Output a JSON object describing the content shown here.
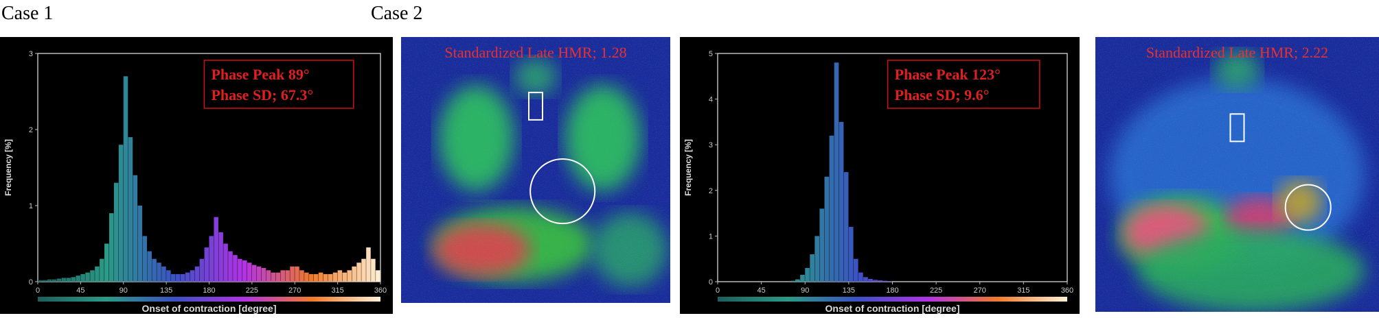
{
  "case_labels": [
    "Case 1",
    "Case 2"
  ],
  "chart_data": [
    {
      "type": "histogram",
      "xlabel": "Onset of contraction [degree]",
      "ylabel": "Frequency [%]",
      "annotations": [
        "Phase Peak 89°",
        "Phase SD; 67.3°"
      ],
      "bins": [
        0,
        5,
        10,
        15,
        20,
        25,
        30,
        35,
        40,
        45,
        50,
        55,
        60,
        65,
        70,
        75,
        80,
        85,
        90,
        95,
        100,
        105,
        110,
        115,
        120,
        125,
        130,
        135,
        140,
        145,
        150,
        155,
        160,
        165,
        170,
        175,
        180,
        185,
        190,
        195,
        200,
        205,
        210,
        215,
        220,
        225,
        230,
        235,
        240,
        245,
        250,
        255,
        260,
        265,
        270,
        275,
        280,
        285,
        290,
        295,
        300,
        305,
        310,
        315,
        320,
        325,
        330,
        335,
        340,
        345,
        350,
        355,
        360
      ],
      "values": [
        0.02,
        0.02,
        0.03,
        0.03,
        0.04,
        0.05,
        0.05,
        0.06,
        0.08,
        0.1,
        0.12,
        0.15,
        0.2,
        0.3,
        0.5,
        0.9,
        1.3,
        1.8,
        2.7,
        1.9,
        1.4,
        1.0,
        0.6,
        0.4,
        0.3,
        0.25,
        0.2,
        0.15,
        0.1,
        0.1,
        0.1,
        0.12,
        0.15,
        0.2,
        0.3,
        0.45,
        0.6,
        0.85,
        0.65,
        0.5,
        0.4,
        0.35,
        0.3,
        0.28,
        0.25,
        0.22,
        0.2,
        0.18,
        0.15,
        0.12,
        0.12,
        0.15,
        0.15,
        0.2,
        0.2,
        0.15,
        0.12,
        0.1,
        0.1,
        0.12,
        0.1,
        0.1,
        0.12,
        0.15,
        0.12,
        0.15,
        0.2,
        0.25,
        0.3,
        0.45,
        0.3,
        0.15
      ],
      "xlim": [
        0,
        360
      ],
      "xticks": [
        0,
        45,
        90,
        135,
        180,
        225,
        270,
        315,
        360
      ],
      "ylim": [
        0,
        3
      ],
      "yticks": [
        0,
        1,
        2,
        3
      ],
      "colorscale": [
        "#1d5f5e",
        "#2b9a86",
        "#3a52c4",
        "#b232e6",
        "#f07a2a",
        "#fff1d6"
      ]
    },
    {
      "type": "histogram",
      "xlabel": "Onset of contraction [degree]",
      "ylabel": "Frequency [%]",
      "annotations": [
        "Phase Peak 123°",
        "Phase SD; 9.6°"
      ],
      "bins": [
        0,
        5,
        10,
        15,
        20,
        25,
        30,
        35,
        40,
        45,
        50,
        55,
        60,
        65,
        70,
        75,
        80,
        85,
        90,
        95,
        100,
        105,
        110,
        115,
        120,
        125,
        130,
        135,
        140,
        145,
        150,
        155,
        160,
        165,
        170,
        175,
        180,
        185,
        190,
        195,
        200,
        205,
        210,
        215,
        220,
        225,
        230,
        235,
        240,
        245,
        250,
        255,
        260,
        265,
        270,
        275,
        280,
        285,
        290,
        295,
        300,
        305,
        310,
        315,
        320,
        325,
        330,
        335,
        340,
        345,
        350,
        355,
        360
      ],
      "values": [
        0,
        0,
        0,
        0,
        0,
        0,
        0,
        0,
        0,
        0,
        0,
        0,
        0,
        0,
        0,
        0.02,
        0.05,
        0.15,
        0.3,
        0.6,
        1.0,
        1.6,
        2.3,
        3.2,
        4.8,
        3.5,
        2.4,
        1.2,
        0.5,
        0.2,
        0.1,
        0.06,
        0.04,
        0.03,
        0.02,
        0.01,
        0,
        0,
        0,
        0,
        0,
        0,
        0,
        0,
        0,
        0,
        0,
        0,
        0,
        0,
        0,
        0,
        0,
        0,
        0,
        0,
        0,
        0,
        0,
        0,
        0,
        0,
        0,
        0,
        0,
        0,
        0,
        0,
        0,
        0,
        0,
        0
      ],
      "xlim": [
        0,
        360
      ],
      "xticks": [
        0,
        45,
        90,
        135,
        180,
        225,
        270,
        315,
        360
      ],
      "ylim": [
        0,
        5
      ],
      "yticks": [
        0,
        1,
        2,
        3,
        4,
        5
      ],
      "colorscale": [
        "#1d5f5e",
        "#2b9a86",
        "#3a52c4",
        "#b232e6",
        "#f07a2a",
        "#fff1d6"
      ]
    }
  ],
  "images": [
    {
      "annotation": "Standardized Late HMR; 1.28"
    },
    {
      "annotation": "Standardized Late HMR; 2.22"
    }
  ]
}
